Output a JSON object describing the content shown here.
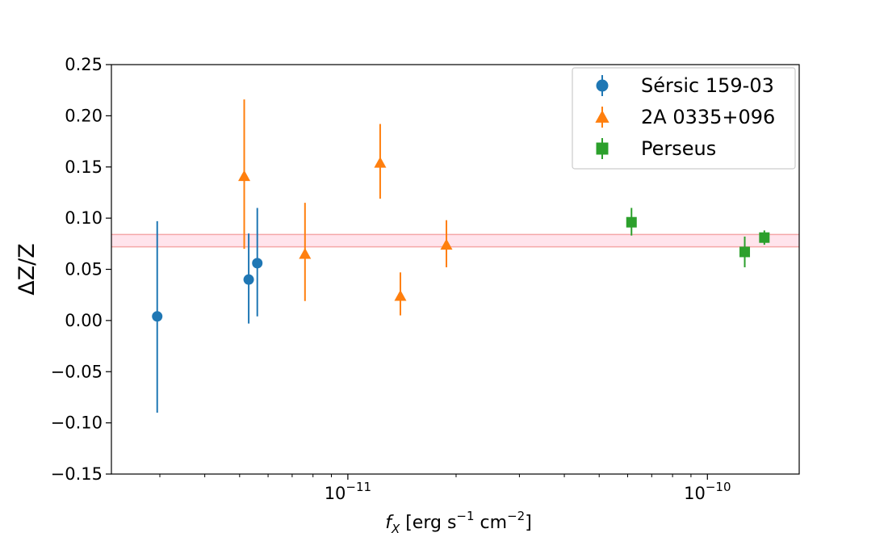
{
  "chart_data": {
    "type": "scatter",
    "xscale": "log",
    "xlim": [
      2.2e-12,
      1.8e-10
    ],
    "ylim": [
      -0.15,
      0.25
    ],
    "xlabel": {
      "main": "f",
      "sub": "X",
      "unit_a": " [erg s",
      "exp_a": "−1",
      "unit_b": " cm",
      "exp_b": "−2",
      "close": "]"
    },
    "ylabel": "ΔZ/Z",
    "grid": false,
    "legend_position": "top-right",
    "yticks": [
      -0.15,
      -0.1,
      -0.05,
      0.0,
      0.05,
      0.1,
      0.15,
      0.2,
      0.25
    ],
    "ytick_labels": [
      "−0.15",
      "−0.10",
      "−0.05",
      "0.00",
      "0.05",
      "0.10",
      "0.15",
      "0.20",
      "0.25"
    ],
    "xticks_major": [
      1e-11,
      1e-10
    ],
    "xtick_labels": [
      {
        "base": "10",
        "exp": "−11"
      },
      {
        "base": "10",
        "exp": "−10"
      }
    ],
    "xticks_minor": [
      3e-12,
      4e-12,
      5e-12,
      6e-12,
      7e-12,
      8e-12,
      9e-12,
      2e-11,
      3e-11,
      4e-11,
      5e-11,
      6e-11,
      7e-11,
      8e-11,
      9e-11
    ],
    "band": {
      "y_low": 0.072,
      "y_high": 0.084,
      "fill": "#ffe4ec",
      "stroke": "#f4a7a7"
    },
    "series": [
      {
        "name": "Sérsic 159-03",
        "marker": "circle",
        "color": "#1f77b4",
        "points": [
          {
            "x": 2.95e-12,
            "y": 0.004,
            "ylo": -0.09,
            "yhi": 0.097
          },
          {
            "x": 5.3e-12,
            "y": 0.04,
            "ylo": -0.003,
            "yhi": 0.085
          },
          {
            "x": 5.6e-12,
            "y": 0.056,
            "ylo": 0.004,
            "yhi": 0.11
          }
        ]
      },
      {
        "name": "2A 0335+096",
        "marker": "triangle",
        "color": "#ff7f0e",
        "points": [
          {
            "x": 5.15e-12,
            "y": 0.141,
            "ylo": 0.07,
            "yhi": 0.216
          },
          {
            "x": 7.6e-12,
            "y": 0.065,
            "ylo": 0.019,
            "yhi": 0.115
          },
          {
            "x": 1.23e-11,
            "y": 0.154,
            "ylo": 0.119,
            "yhi": 0.192
          },
          {
            "x": 1.4e-11,
            "y": 0.024,
            "ylo": 0.005,
            "yhi": 0.047
          },
          {
            "x": 1.88e-11,
            "y": 0.074,
            "ylo": 0.052,
            "yhi": 0.098
          }
        ]
      },
      {
        "name": "Perseus",
        "marker": "square",
        "color": "#2ca02c",
        "points": [
          {
            "x": 6.15e-11,
            "y": 0.096,
            "ylo": 0.083,
            "yhi": 0.11
          },
          {
            "x": 1.27e-10,
            "y": 0.067,
            "ylo": 0.052,
            "yhi": 0.082
          },
          {
            "x": 1.44e-10,
            "y": 0.081,
            "ylo": 0.074,
            "yhi": 0.088
          }
        ]
      }
    ]
  }
}
